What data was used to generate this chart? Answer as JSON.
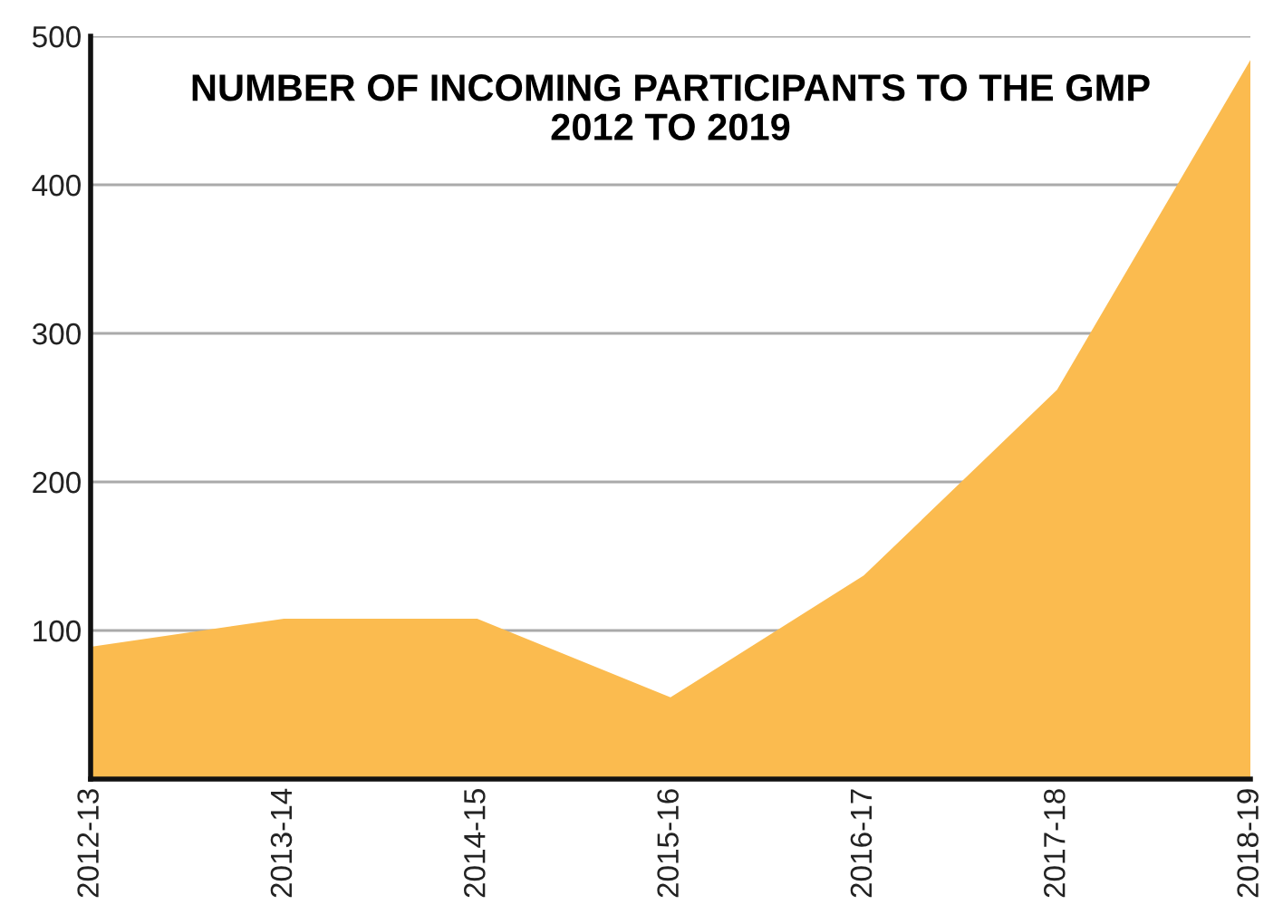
{
  "chart_data": {
    "type": "area",
    "title": "NUMBER OF INCOMING PARTICIPANTS TO THE GMP\n2012 TO 2019",
    "categories": [
      "2012-13",
      "2013-14",
      "2014-15",
      "2015-16",
      "2016-17",
      "2017-18",
      "2018-19"
    ],
    "series": [
      {
        "color": "#fbbb4f",
        "values": [
          89,
          108,
          108,
          55,
          137,
          262,
          484
        ]
      }
    ],
    "ylim": [
      0,
      500
    ],
    "yticks": [
      100,
      200,
      300,
      400,
      500
    ],
    "grid": "y",
    "legend": false
  }
}
